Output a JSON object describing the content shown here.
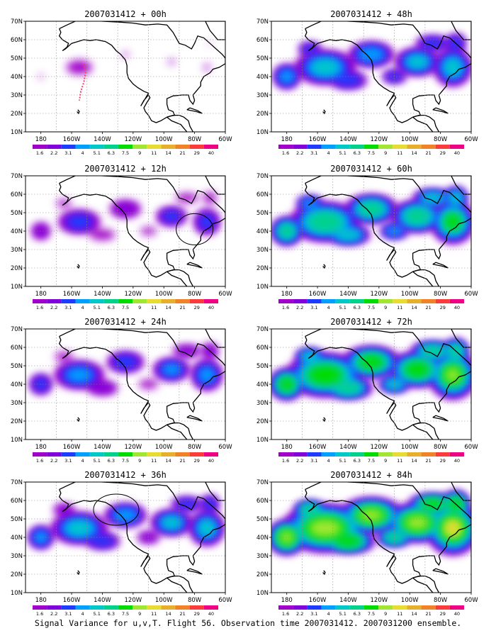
{
  "caption": "Signal Variance for u,v,T. Flight 56. Observation time 2007031412. 2007031200 ensemble.",
  "lat_ticks": [
    "70N",
    "60N",
    "50N",
    "40N",
    "30N",
    "20N",
    "10N"
  ],
  "lon_ticks": [
    "180",
    "160W",
    "140W",
    "120W",
    "100W",
    "80W",
    "60W"
  ],
  "colorbar": {
    "labels": [
      "1.6",
      "2.2",
      "3.1",
      "4",
      "5.1",
      "6.3",
      "7.5",
      "9",
      "11",
      "14",
      "21",
      "29",
      "40"
    ],
    "colors": [
      "#a000c8",
      "#8200dc",
      "#1e3cff",
      "#00a0ff",
      "#00c8c8",
      "#00d28c",
      "#00dc00",
      "#a0e632",
      "#e6dc32",
      "#e6af2d",
      "#f08228",
      "#fa3c3c",
      "#f00082"
    ]
  },
  "panels": [
    {
      "id": "p00",
      "title": "2007031412 + 00h",
      "level": 0.0
    },
    {
      "id": "p48",
      "title": "2007031412 + 48h",
      "level": 0.55
    },
    {
      "id": "p12",
      "title": "2007031412 + 12h",
      "level": 0.25
    },
    {
      "id": "p60",
      "title": "2007031412 + 60h",
      "level": 0.7
    },
    {
      "id": "p24",
      "title": "2007031412 + 24h",
      "level": 0.38
    },
    {
      "id": "p72",
      "title": "2007031412 + 72h",
      "level": 0.82
    },
    {
      "id": "p36",
      "title": "2007031412 + 36h",
      "level": 0.48
    },
    {
      "id": "p84",
      "title": "2007031412 + 84h",
      "level": 0.95
    }
  ]
}
